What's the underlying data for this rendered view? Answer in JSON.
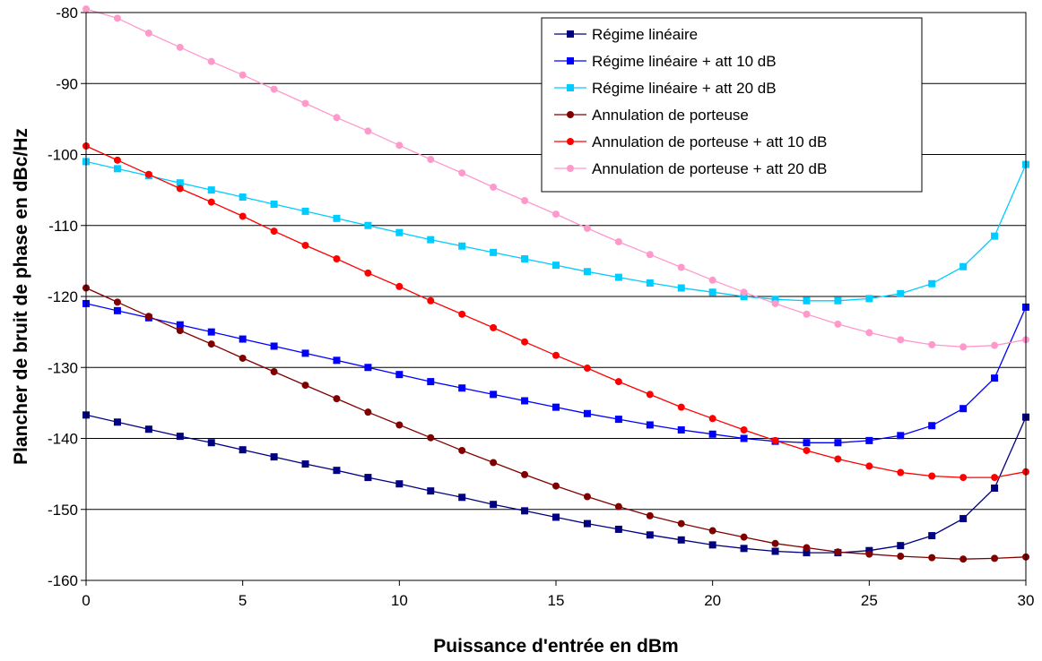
{
  "chart_data": {
    "type": "line",
    "title": "",
    "xlabel": "Puissance d'entrée en dBm",
    "ylabel": "Plancher de bruit de phase en dBc/Hz",
    "xlim": [
      0,
      30
    ],
    "ylim": [
      -160,
      -80
    ],
    "xticks": [
      0,
      5,
      10,
      15,
      20,
      25,
      30
    ],
    "yticks": [
      -80,
      -90,
      -100,
      -110,
      -120,
      -130,
      -140,
      -150,
      -160
    ],
    "grid": "horizontal",
    "legend_position": "top-right",
    "x": [
      0,
      1,
      2,
      3,
      4,
      5,
      6,
      7,
      8,
      9,
      10,
      11,
      12,
      13,
      14,
      15,
      16,
      17,
      18,
      19,
      20,
      21,
      22,
      23,
      24,
      25,
      26,
      27,
      28,
      29,
      30
    ],
    "series": [
      {
        "name": "Régime linéaire",
        "color": "#000080",
        "marker": "square",
        "values": [
          -136.7,
          -137.7,
          -138.7,
          -139.7,
          -140.6,
          -141.6,
          -142.6,
          -143.6,
          -144.5,
          -145.5,
          -146.4,
          -147.4,
          -148.3,
          -149.3,
          -150.2,
          -151.1,
          -152.0,
          -152.8,
          -153.6,
          -154.3,
          -155.0,
          -155.5,
          -155.9,
          -156.1,
          -156.1,
          -155.8,
          -155.1,
          -153.7,
          -151.3,
          -147.0,
          -137.0
        ]
      },
      {
        "name": "Régime linéaire + att 10 dB",
        "color": "#0000FF",
        "marker": "square",
        "values": [
          -121.0,
          -122.0,
          -123.0,
          -124.0,
          -125.0,
          -126.0,
          -127.0,
          -128.0,
          -129.0,
          -130.0,
          -131.0,
          -132.0,
          -132.9,
          -133.8,
          -134.7,
          -135.6,
          -136.5,
          -137.3,
          -138.1,
          -138.8,
          -139.4,
          -140.0,
          -140.4,
          -140.6,
          -140.6,
          -140.3,
          -139.6,
          -138.2,
          -135.8,
          -131.5,
          -121.5
        ]
      },
      {
        "name": "Régime linéaire + att 20 dB",
        "color": "#00CCFF",
        "marker": "square",
        "values": [
          -101.0,
          -102.0,
          -103.0,
          -104.0,
          -105.0,
          -106.0,
          -107.0,
          -108.0,
          -109.0,
          -110.0,
          -111.0,
          -112.0,
          -112.9,
          -113.8,
          -114.7,
          -115.6,
          -116.5,
          -117.3,
          -118.1,
          -118.8,
          -119.4,
          -120.0,
          -120.4,
          -120.6,
          -120.6,
          -120.3,
          -119.6,
          -118.2,
          -115.8,
          -111.5,
          -101.4
        ]
      },
      {
        "name": "Annulation de porteuse",
        "color": "#800000",
        "marker": "circle",
        "values": [
          -118.8,
          -120.8,
          -122.8,
          -124.8,
          -126.7,
          -128.7,
          -130.6,
          -132.5,
          -134.4,
          -136.3,
          -138.1,
          -139.9,
          -141.7,
          -143.4,
          -145.1,
          -146.7,
          -148.2,
          -149.6,
          -150.9,
          -152.0,
          -153.0,
          -153.9,
          -154.8,
          -155.4,
          -156.0,
          -156.3,
          -156.6,
          -156.8,
          -157.0,
          -156.9,
          -156.7
        ]
      },
      {
        "name": "Annulation de porteuse + att 10 dB",
        "color": "#FF0000",
        "marker": "circle",
        "values": [
          -98.8,
          -100.8,
          -102.8,
          -104.8,
          -106.7,
          -108.7,
          -110.8,
          -112.8,
          -114.7,
          -116.7,
          -118.6,
          -120.6,
          -122.5,
          -124.4,
          -126.4,
          -128.3,
          -130.1,
          -132.0,
          -133.8,
          -135.6,
          -137.2,
          -138.8,
          -140.3,
          -141.7,
          -142.9,
          -143.9,
          -144.8,
          -145.3,
          -145.5,
          -145.5,
          -144.7
        ]
      },
      {
        "name": "Annulation de porteuse + att 20 dB",
        "color": "#FF99CC",
        "marker": "circle",
        "values": [
          -79.5,
          -80.8,
          -82.9,
          -84.9,
          -86.9,
          -88.8,
          -90.8,
          -92.8,
          -94.8,
          -96.7,
          -98.7,
          -100.7,
          -102.6,
          -104.6,
          -106.5,
          -108.4,
          -110.4,
          -112.3,
          -114.1,
          -115.9,
          -117.7,
          -119.4,
          -121.0,
          -122.5,
          -123.9,
          -125.1,
          -126.1,
          -126.8,
          -127.1,
          -126.9,
          -126.1
        ]
      }
    ]
  }
}
